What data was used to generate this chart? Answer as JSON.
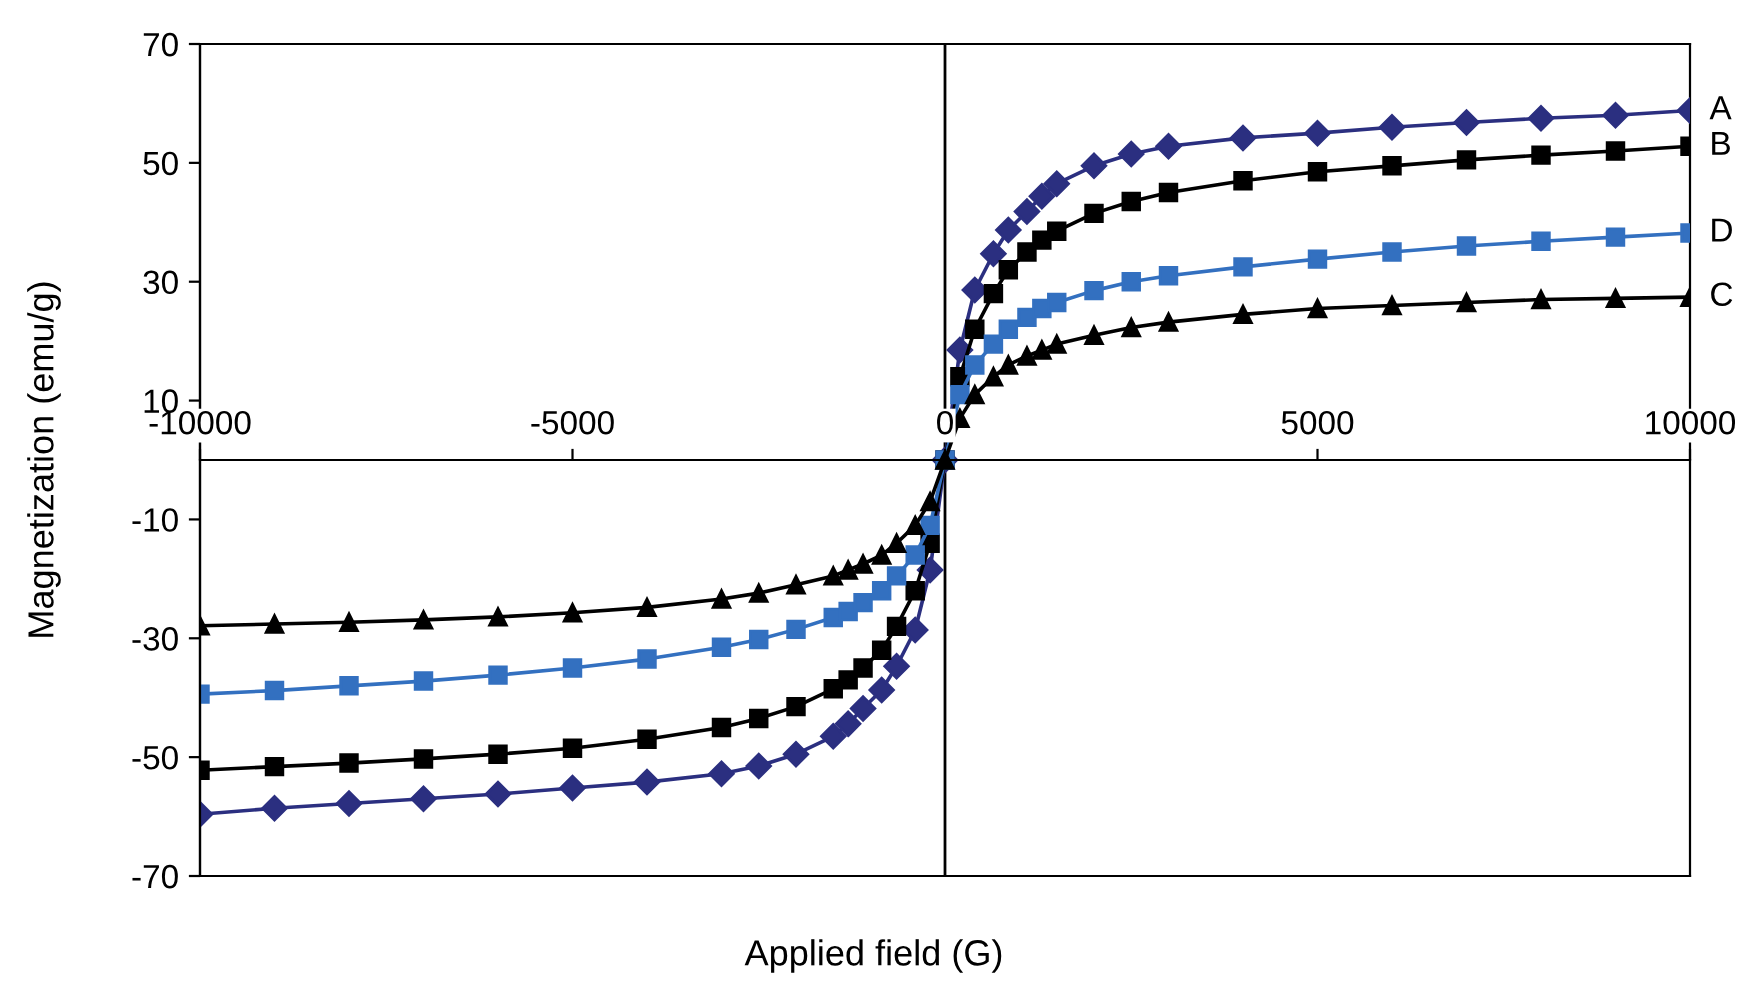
{
  "chart_data": {
    "type": "line",
    "xlabel": "Applied field (G)",
    "ylabel": "Magnetization (emu/g)",
    "x": [
      -10000,
      -9000,
      -8000,
      -7000,
      -6000,
      -5000,
      -4000,
      -3000,
      -2500,
      -2000,
      -1500,
      -1300,
      -1100,
      -850,
      -650,
      -400,
      -200,
      0,
      200,
      400,
      650,
      850,
      1100,
      1300,
      1500,
      2000,
      2500,
      3000,
      4000,
      5000,
      6000,
      7000,
      8000,
      9000,
      10000
    ],
    "series": [
      {
        "name": "A",
        "color": "#2b2f80",
        "marker": "diamond",
        "values": [
          -59.6,
          -58.6,
          -57.8,
          -57,
          -56.2,
          -55.2,
          -54.2,
          -52.8,
          -51.5,
          -49.5,
          -46.5,
          -44.4,
          -41.8,
          -38.7,
          -34.7,
          -28.6,
          -18.5,
          0,
          18.5,
          28.6,
          34.7,
          38.7,
          41.8,
          44.4,
          46.5,
          49.5,
          51.5,
          52.8,
          54.2,
          55,
          56,
          56.8,
          57.5,
          58,
          58.8
        ]
      },
      {
        "name": "B",
        "color": "#000000",
        "marker": "square",
        "values": [
          -52.2,
          -51.6,
          -51,
          -50.3,
          -49.5,
          -48.5,
          -47,
          -45,
          -43.5,
          -41.5,
          -38.5,
          -37,
          -35,
          -32,
          -28,
          -22,
          -14,
          0,
          14,
          22,
          28,
          32,
          35,
          37,
          38.5,
          41.5,
          43.5,
          45,
          47,
          48.5,
          49.5,
          50.5,
          51.3,
          52,
          52.8
        ]
      },
      {
        "name": "D",
        "color": "#3370c0",
        "marker": "square",
        "values": [
          -39.4,
          -38.8,
          -38,
          -37.2,
          -36.2,
          -35,
          -33.5,
          -31.5,
          -30.2,
          -28.5,
          -26.5,
          -25.5,
          -24,
          -22,
          -19.5,
          -16,
          -11,
          0,
          11,
          16,
          19.5,
          22,
          24,
          25.5,
          26.5,
          28.5,
          30,
          31,
          32.5,
          33.8,
          35,
          36,
          36.8,
          37.5,
          38.2
        ]
      },
      {
        "name": "C",
        "color": "#000000",
        "marker": "triangle",
        "values": [
          -27.9,
          -27.6,
          -27.3,
          -26.9,
          -26.4,
          -25.7,
          -24.8,
          -23.4,
          -22.4,
          -21,
          -19.5,
          -18.5,
          -17.5,
          -16,
          -14,
          -11,
          -7,
          0,
          7,
          11,
          14,
          16,
          17.5,
          18.5,
          19.5,
          21,
          22.3,
          23.2,
          24.5,
          25.5,
          26,
          26.5,
          27,
          27.2,
          27.4
        ]
      }
    ],
    "xlim": [
      -10000,
      10000
    ],
    "ylim": [
      -70,
      70
    ],
    "xticks": [
      -10000,
      -5000,
      0,
      5000,
      10000
    ],
    "yticks": [
      -70,
      -50,
      -30,
      -10,
      10,
      30,
      50,
      70
    ],
    "ref_lines": [
      {
        "axis": "x",
        "value": 0,
        "color": "#000000"
      }
    ],
    "grid": false,
    "legend": false,
    "line_style": "solid"
  }
}
